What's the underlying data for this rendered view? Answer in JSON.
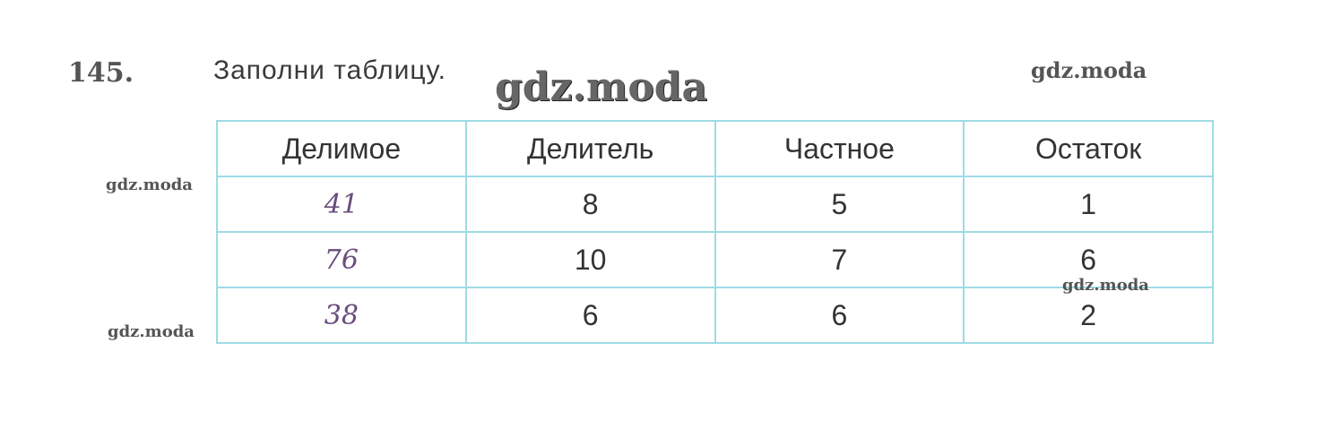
{
  "exercise": {
    "number": "145.",
    "instruction": "Заполни таблицу."
  },
  "watermarks": [
    "gdz.moda",
    "gdz.moda",
    "gdz.moda",
    "gdz.moda",
    "gdz.moda"
  ],
  "table": {
    "headers": [
      "Делимое",
      "Делитель",
      "Частное",
      "Остаток"
    ],
    "rows": [
      [
        "41",
        "8",
        "5",
        "1"
      ],
      [
        "76",
        "10",
        "7",
        "6"
      ],
      [
        "38",
        "6",
        "6",
        "2"
      ]
    ]
  },
  "colors": {
    "grid": "#9fdbe6",
    "handwriting": "#6a4c7e"
  }
}
